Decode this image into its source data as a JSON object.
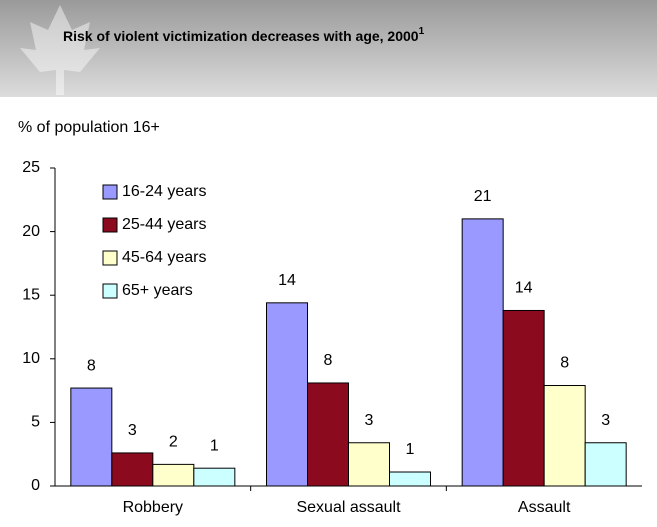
{
  "chart_data": {
    "type": "bar",
    "title": "Risk of violent victimization decreases with age, 2000",
    "title_note": "1",
    "y_axis_label": "% of population 16+",
    "categories": [
      "Robbery",
      "Sexual assault",
      "Assault"
    ],
    "series": [
      {
        "name": "16-24 years",
        "color": "#9999ff",
        "values": [
          7.7,
          14.4,
          21.0
        ],
        "value_labels": [
          "8",
          "14",
          "21"
        ]
      },
      {
        "name": "25-44 years",
        "color": "#8b0a1e",
        "values": [
          2.6,
          8.1,
          13.8
        ],
        "value_labels": [
          "3",
          "8",
          "14"
        ]
      },
      {
        "name": "45-64 years",
        "color": "#ffffcc",
        "values": [
          1.7,
          3.4,
          7.9
        ],
        "value_labels": [
          "2",
          "3",
          "8"
        ]
      },
      {
        "name": "65+ years",
        "color": "#ccffff",
        "values": [
          1.4,
          1.1,
          3.4
        ],
        "value_labels": [
          "1",
          "1",
          "3"
        ]
      }
    ],
    "ylim": [
      0,
      25
    ],
    "yticks": [
      0,
      5,
      10,
      15,
      20,
      25
    ],
    "grid": false,
    "legend": "upper left"
  }
}
